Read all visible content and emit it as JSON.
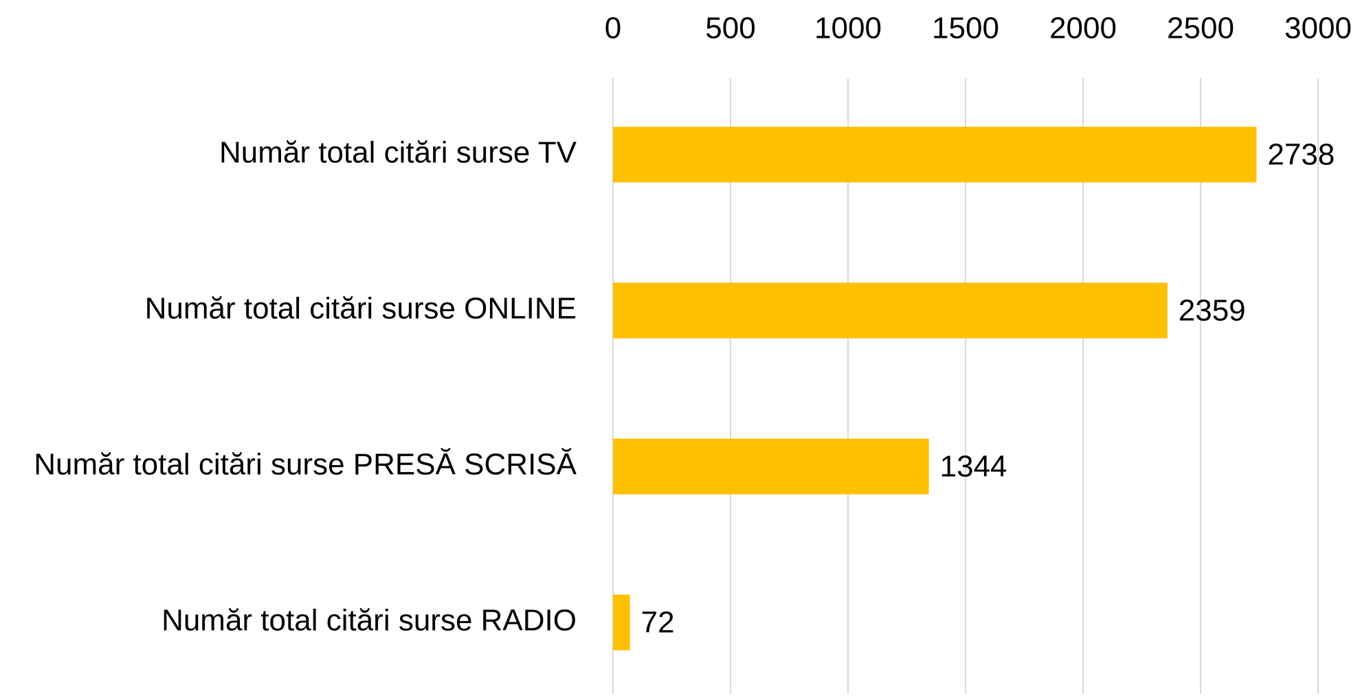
{
  "chart_data": {
    "type": "bar",
    "orientation": "horizontal",
    "categories": [
      "Număr total citări surse TV",
      "Număr total citări surse ONLINE",
      "Număr total citări surse PRESĂ SCRISĂ",
      "Număr total citări surse RADIO"
    ],
    "values": [
      2738,
      2359,
      1344,
      72
    ],
    "color": "#ffc000",
    "xlim": [
      0,
      3000
    ],
    "xticks": [
      0,
      500,
      1000,
      1500,
      2000,
      2500,
      3000
    ],
    "grid": true,
    "axis_position": "top"
  }
}
